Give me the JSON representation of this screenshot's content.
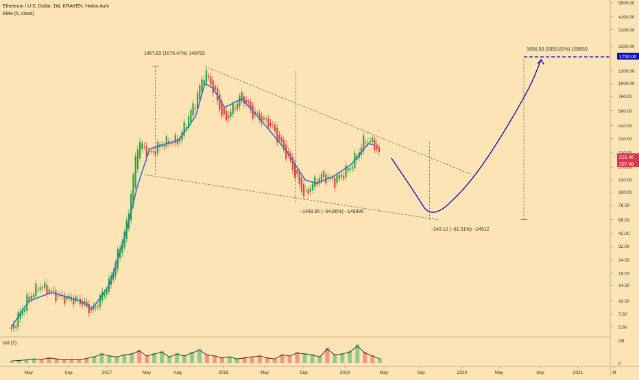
{
  "header": {
    "title": "Ethereum / U.S. Dollar, 1W, KRAKEN, Heikin Ashi",
    "indicator": "EMA (5, close)"
  },
  "volume_pane": {
    "label": "Vol (1)",
    "axis_labels": [
      "2M",
      "0"
    ]
  },
  "annotations": {
    "peak_measure": "1457.83 (1076.47%) 145783",
    "drop_measure": "−1498.95 (−94.86%) −149895",
    "projected_drop": "−249.12 (−81.51%) −24912",
    "projected_rise": "1696.50 (3053.81%) 169650"
  },
  "price_badges": {
    "target": "1750.00",
    "last_close": "215.46",
    "ema": "207.48"
  },
  "colors": {
    "background": "#fce4b4",
    "up_candle": "#26a23a",
    "down_candle": "#e2403d",
    "ema_line": "#2f6fd2",
    "projection": "#1010c0",
    "badge_red": "#e0344a",
    "badge_blue": "#1010c0"
  },
  "chart_data": {
    "type": "candlestick",
    "price_scale": "log",
    "y_ticks": [
      5500,
      4100,
      3100,
      2200,
      1750,
      1300,
      1000,
      760,
      560,
      410,
      310,
      230,
      170,
      130,
      100,
      76,
      56,
      42,
      32,
      24,
      18,
      14,
      10,
      7.6,
      5.8
    ],
    "x_ticks": [
      "May",
      "Sep",
      "2017",
      "May",
      "Aug",
      "2018",
      "May",
      "Sep",
      "2019",
      "May",
      "Sep",
      "2020",
      "May",
      "Sep",
      "2021",
      "M"
    ],
    "ema_path": [
      [
        2016.35,
        5.8
      ],
      [
        2016.5,
        10
      ],
      [
        2016.7,
        12
      ],
      [
        2016.95,
        10
      ],
      [
        2017.05,
        8.5
      ],
      [
        2017.2,
        14
      ],
      [
        2017.35,
        45
      ],
      [
        2017.45,
        120
      ],
      [
        2017.55,
        250
      ],
      [
        2017.65,
        270
      ],
      [
        2017.8,
        300
      ],
      [
        2017.95,
        500
      ],
      [
        2018.03,
        1000
      ],
      [
        2018.1,
        900
      ],
      [
        2018.2,
        600
      ],
      [
        2018.35,
        720
      ],
      [
        2018.5,
        480
      ],
      [
        2018.6,
        360
      ],
      [
        2018.75,
        230
      ],
      [
        2018.9,
        130
      ],
      [
        2019.0,
        120
      ],
      [
        2019.15,
        140
      ],
      [
        2019.3,
        180
      ],
      [
        2019.45,
        280
      ],
      [
        2019.5,
        270
      ]
    ],
    "price_path": [
      [
        2016.35,
        5.5
      ],
      [
        2016.5,
        11
      ],
      [
        2016.6,
        14
      ],
      [
        2016.75,
        11
      ],
      [
        2016.95,
        10
      ],
      [
        2017.05,
        8
      ],
      [
        2017.2,
        15
      ],
      [
        2017.35,
        50
      ],
      [
        2017.45,
        300
      ],
      [
        2017.55,
        220
      ],
      [
        2017.65,
        280
      ],
      [
        2017.8,
        300
      ],
      [
        2017.95,
        700
      ],
      [
        2018.03,
        1300
      ],
      [
        2018.1,
        900
      ],
      [
        2018.2,
        450
      ],
      [
        2018.35,
        780
      ],
      [
        2018.45,
        520
      ],
      [
        2018.6,
        420
      ],
      [
        2018.75,
        210
      ],
      [
        2018.9,
        90
      ],
      [
        2018.95,
        115
      ],
      [
        2019.05,
        145
      ],
      [
        2019.15,
        125
      ],
      [
        2019.3,
        175
      ],
      [
        2019.42,
        310
      ],
      [
        2019.5,
        280
      ],
      [
        2019.55,
        215
      ]
    ],
    "trendlines": [
      {
        "from": [
          2018.03,
          1430
        ],
        "to": [
          2020.35,
          145
        ]
      },
      {
        "from": [
          2017.5,
          145
        ],
        "to": [
          2020.05,
          56
        ]
      }
    ],
    "projection_path": [
      [
        2019.65,
        205
      ],
      [
        2019.85,
        100
      ],
      [
        2020.0,
        56
      ],
      [
        2020.3,
        110
      ],
      [
        2020.55,
        260
      ],
      [
        2020.85,
        900
      ],
      [
        2020.95,
        1650
      ]
    ],
    "volume": [
      0.2,
      0.25,
      0.3,
      0.4,
      0.35,
      0.5,
      0.4,
      0.3,
      0.35,
      0.3,
      0.45,
      0.6,
      0.9,
      0.7,
      0.6,
      0.8,
      0.9,
      1.2,
      0.7,
      0.9,
      1.1,
      0.6,
      0.9,
      0.7,
      1.0,
      1.3,
      0.8,
      0.7,
      0.5,
      0.6,
      0.4,
      0.5,
      0.6,
      0.7,
      0.5,
      0.4,
      0.8,
      0.7,
      1.0,
      0.9,
      0.8,
      0.6,
      1.4,
      0.8,
      0.9,
      1.1,
      1.7,
      1.0,
      0.7,
      0.4
    ]
  }
}
